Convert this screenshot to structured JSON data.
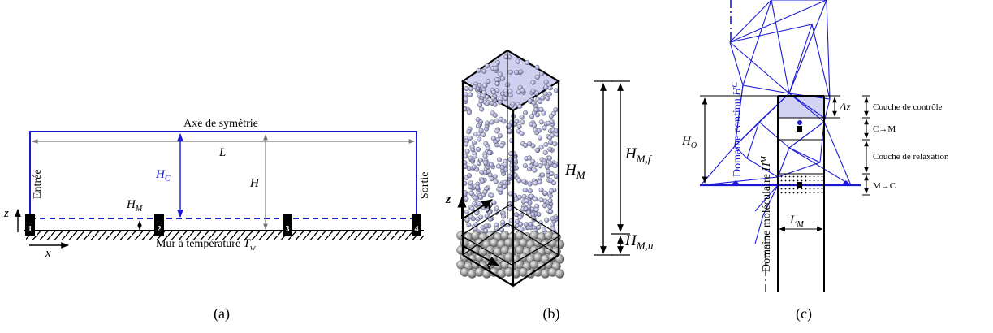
{
  "panel_a": {
    "caption": "(a)",
    "axis_label": "Axe de symétrie",
    "entry_label": "Entrée",
    "exit_label": "Sortie",
    "length_label": "L",
    "height_label": "H",
    "hc_label": "H",
    "hc_sub": "C",
    "hm_label": "H",
    "hm_sub": "M",
    "wall_label": "Mur à température ",
    "wall_var": "T",
    "wall_sub": "w",
    "z_label": "z",
    "x_label": "x",
    "markers": [
      "1",
      "2",
      "3",
      "4"
    ]
  },
  "panel_b": {
    "caption": "(b)",
    "hm_label": "H",
    "hm_sub": "M",
    "hmf_label": "H",
    "hmf_sub": "M,f",
    "hmu_label": "H",
    "hmu_sub": "M,u",
    "z_label": "z",
    "y_label": "y",
    "x_label": "x"
  },
  "panel_c": {
    "caption": "(c)",
    "continuum_label": "Domaine continu ",
    "continuum_var": "H",
    "continuum_sub": "C",
    "molecular_label": "Domaine moléculaire ",
    "molecular_var": "H",
    "molecular_sub": "M",
    "ho_label": "H",
    "ho_sub": "O",
    "dz_label": "Δz",
    "lm_label": "L",
    "lm_sub": "M",
    "control_label": "Couche de contrôle",
    "c2m_label": "C→M",
    "relax_label": "Couche de relaxation",
    "m2c_label": "M→C"
  },
  "colors": {
    "blue": "#1a1ad6",
    "black": "#000000",
    "gray": "#777777",
    "shade": "#c8c8ec",
    "atom_fluid": "#9a9acc",
    "atom_wall": "#8a8a8a"
  }
}
